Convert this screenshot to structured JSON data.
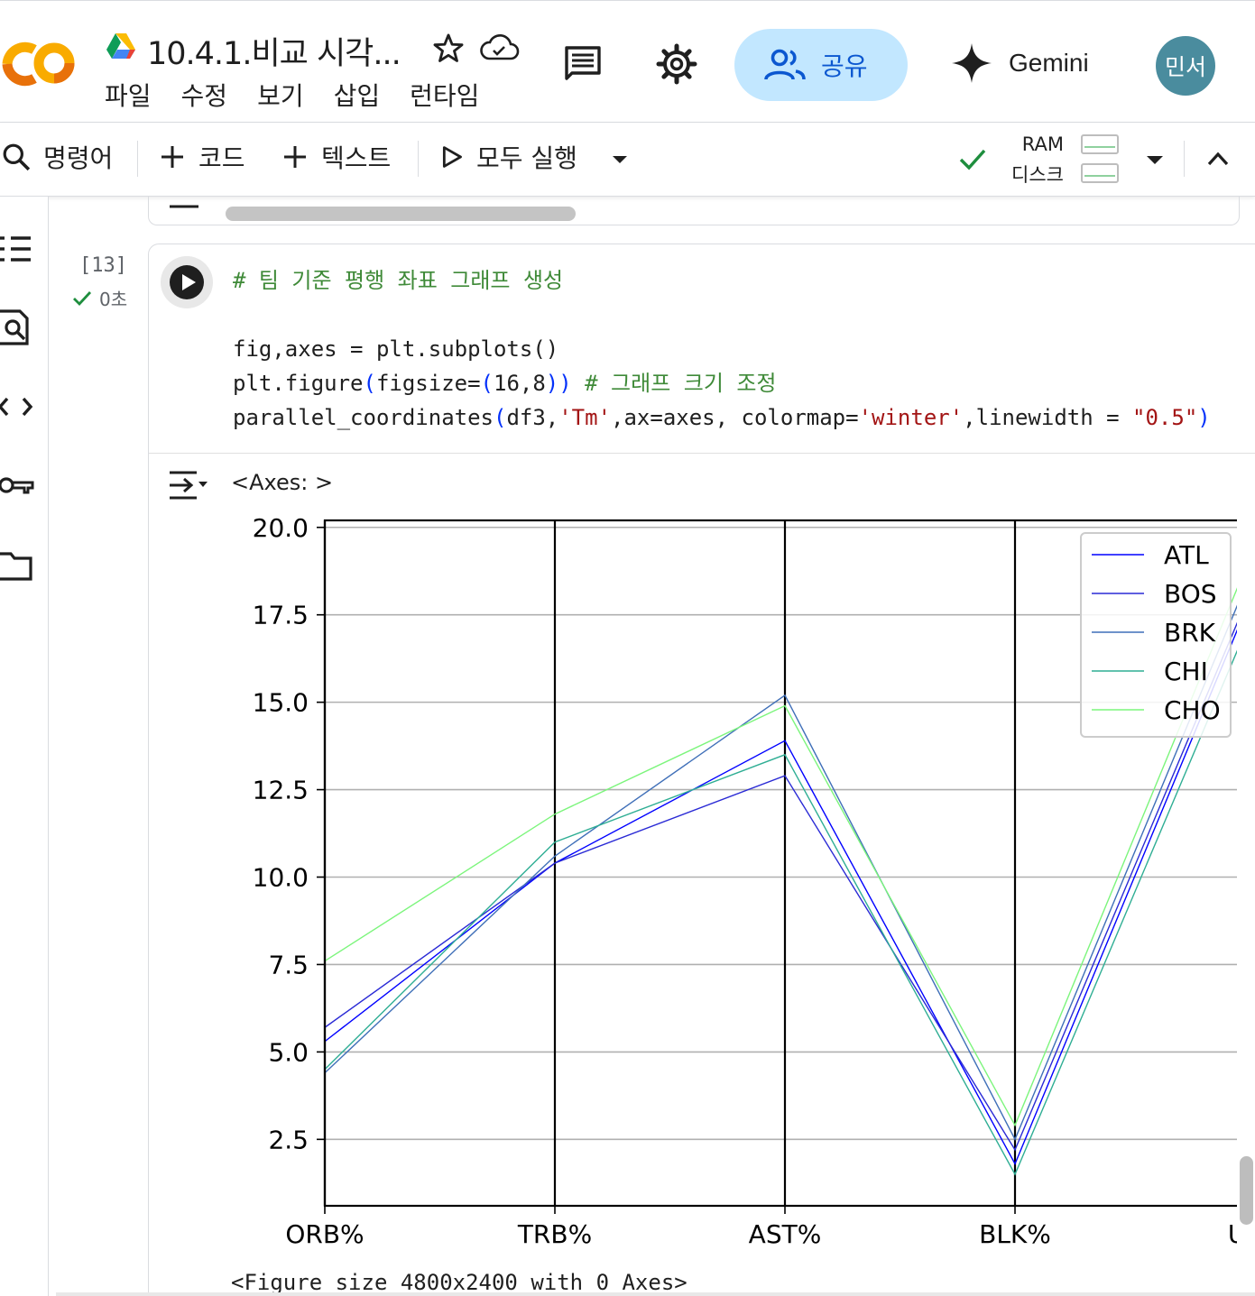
{
  "header": {
    "title": "10.4.1.비교 시각...",
    "menu": [
      "파일",
      "수정",
      "보기",
      "삽입",
      "런타임"
    ],
    "share_label": "공유",
    "gemini_label": "Gemini",
    "avatar_text": "민서"
  },
  "toolbar": {
    "commands_label": "명령어",
    "add_code_label": "코드",
    "add_text_label": "텍스트",
    "run_all_label": "모두 실행",
    "ram_label": "RAM",
    "disk_label": "디스크"
  },
  "cell": {
    "exec_count": "[13]",
    "exec_time": "0초",
    "code_comment": "# 팀 기준 평행 좌표 그래프 생성",
    "code_line1": "fig,axes = plt.subplots()",
    "code_line2_a": "plt.figure",
    "code_line2_b": "figsize=",
    "code_line2_c": "16,8",
    "code_line2_comment": "# 그래프 크기 조정",
    "code_line3_a": "parallel_coordinates",
    "code_line3_b": "df3,",
    "code_line3_str1": "'Tm'",
    "code_line3_c": ",ax=axes, colormap=",
    "code_line3_str2": "'winter'",
    "code_line3_d": ",linewidth = ",
    "code_line3_str3": "\"0.5\"",
    "output_axes_text": "<Axes: >",
    "output_figure_text": "<Figure size 4800x2400 with 0 Axes>"
  },
  "chart_data": {
    "type": "line",
    "title": "",
    "categories": [
      "ORB%",
      "TRB%",
      "AST%",
      "BLK%",
      "US"
    ],
    "ylim": [
      0.6,
      20.2
    ],
    "yticks": [
      "2.5",
      "5.0",
      "7.5",
      "10.0",
      "12.5",
      "15.0",
      "17.5",
      "20.0"
    ],
    "grid": true,
    "legend_position": "top-right",
    "series": [
      {
        "name": "ATL",
        "color": "#0000ff",
        "values": [
          5.3,
          10.4,
          13.9,
          1.8,
          17.6
        ]
      },
      {
        "name": "BOS",
        "color": "#2a2ad5",
        "values": [
          5.7,
          10.4,
          12.9,
          2.2,
          17.8
        ]
      },
      {
        "name": "BRK",
        "color": "#3f6fb8",
        "values": [
          4.4,
          10.6,
          15.2,
          2.5,
          18.3
        ]
      },
      {
        "name": "CHI",
        "color": "#2fae94",
        "values": [
          4.5,
          11.0,
          13.5,
          1.5,
          17.0
        ]
      },
      {
        "name": "CHO",
        "color": "#7cf57c",
        "values": [
          7.6,
          11.8,
          14.9,
          2.9,
          18.8
        ]
      }
    ]
  }
}
